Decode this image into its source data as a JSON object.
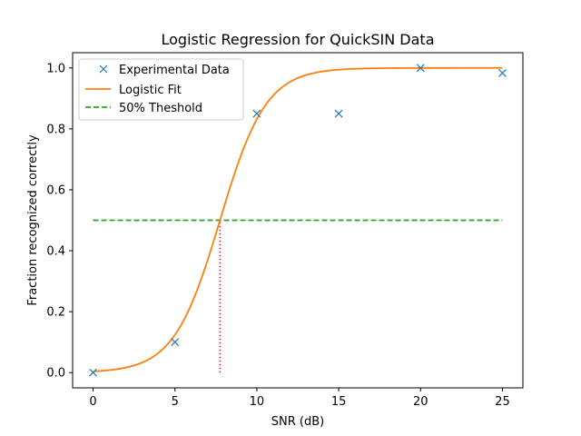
{
  "chart_data": {
    "type": "line",
    "title": "Logistic Regression for QuickSIN Data",
    "xlabel": "SNR (dB)",
    "ylabel": "Fraction recognized correctly",
    "xlim": [
      -1.25,
      26.25
    ],
    "ylim": [
      -0.05,
      1.05
    ],
    "xticks": [
      0,
      5,
      10,
      15,
      20,
      25
    ],
    "yticks": [
      0.0,
      0.2,
      0.4,
      0.6,
      0.8,
      1.0
    ],
    "xtick_labels": [
      "0",
      "5",
      "10",
      "15",
      "20",
      "25"
    ],
    "ytick_labels": [
      "0.0",
      "0.2",
      "0.4",
      "0.6",
      "0.8",
      "1.0"
    ],
    "legend_position": "top-left",
    "series": [
      {
        "name": "Experimental Data",
        "kind": "scatter",
        "marker": "x",
        "color": "#1f77b4",
        "x": [
          0,
          5,
          10,
          15,
          20,
          25
        ],
        "y": [
          0.0,
          0.1,
          0.85,
          0.85,
          1.0,
          0.983
        ]
      },
      {
        "name": "Logistic Fit",
        "kind": "line",
        "color": "#ff7f0e",
        "model": "logistic",
        "midpoint": 7.75,
        "slope": 0.71,
        "x_range": [
          0,
          25
        ]
      },
      {
        "name": "50% Theshold",
        "kind": "hline",
        "style": "dashed",
        "color": "#2ca02c",
        "y": 0.5,
        "x_range": [
          0,
          25
        ]
      }
    ],
    "threshold_drop": {
      "x": 7.75,
      "y_range": [
        0,
        0.5
      ],
      "style": "dotted",
      "color": "#d62728"
    }
  }
}
